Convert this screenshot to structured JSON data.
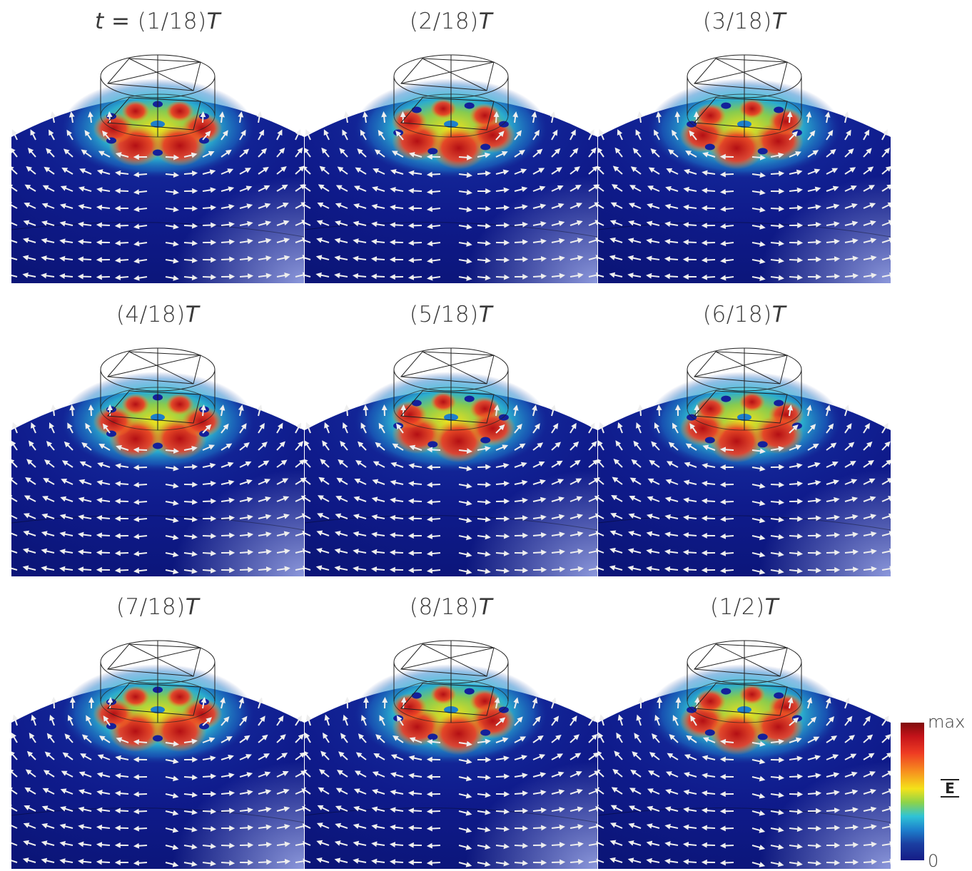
{
  "panels": [
    {
      "label_prefix": "t = ",
      "label_main": "(1/18)",
      "label_suffix": "T",
      "rotation": 0
    },
    {
      "label_prefix": "",
      "label_main": "(2/18)",
      "label_suffix": "T",
      "rotation": 20
    },
    {
      "label_prefix": "",
      "label_main": "(3/18)",
      "label_suffix": "T",
      "rotation": 40
    },
    {
      "label_prefix": "",
      "label_main": "(4/18)",
      "label_suffix": "T",
      "rotation": 60
    },
    {
      "label_prefix": "",
      "label_main": "(5/18)",
      "label_suffix": "T",
      "rotation": 80
    },
    {
      "label_prefix": "",
      "label_main": "(6/18)",
      "label_suffix": "T",
      "rotation": 100
    },
    {
      "label_prefix": "",
      "label_main": "(7/18)",
      "label_suffix": "T",
      "rotation": 120
    },
    {
      "label_prefix": "",
      "label_main": "(8/18)",
      "label_suffix": "T",
      "rotation": 140
    },
    {
      "label_prefix": "",
      "label_main": "(1/2)",
      "label_suffix": "T",
      "rotation": 160
    }
  ],
  "colorbar": {
    "max_label": "max",
    "min_label": "0",
    "quantity_symbol": "E"
  },
  "colors": {
    "field_low": "#10198a",
    "field_high": "#c4131a",
    "arrow": "#eeeeee"
  }
}
